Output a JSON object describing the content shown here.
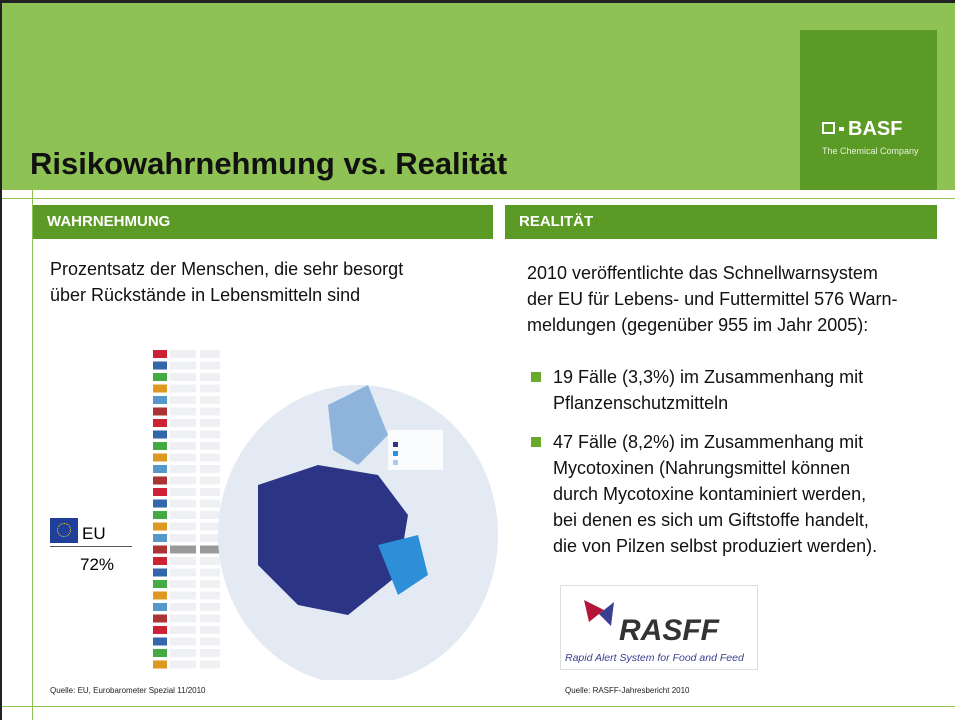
{
  "header": {
    "title": "Risikowahrnehmung vs. Realität"
  },
  "logo": {
    "name": "BASF",
    "tagline": "The Chemical Company"
  },
  "left": {
    "heading": "WAHRNEHMUNG",
    "text": [
      "Prozentsatz der Menschen, die sehr besorgt",
      "über Rückstände in Lebensmitteln sind"
    ],
    "eu_label": "EU",
    "eu_value": "72%",
    "source": "Quelle: EU, Eurobarometer Spezial 11/2010"
  },
  "right": {
    "heading": "REALITÄT",
    "text": [
      "2010 veröffentlichte das Schnellwarnsystem",
      "der EU für Lebens- und Futtermittel 576 Warn-",
      "meldungen (gegenüber 955 im Jahr 2005):"
    ],
    "bullets": [
      [
        "19 Fälle (3,3%) im Zusammenhang mit",
        "Pflanzenschutzmitteln"
      ],
      [
        "47 Fälle (8,2%) im Zusammenhang mit",
        "Mycotoxinen (Nahrungsmittel können",
        "durch Mycotoxine kontaminiert werden,",
        "bei denen es sich um Giftstoffe handelt,",
        "die von Pilzen selbst produziert werden)."
      ]
    ],
    "rasff_name": "RASFF",
    "rasff_full": "Rapid Alert System for Food and Feed",
    "source": "Quelle: RASFF-Jahresbericht 2010"
  }
}
